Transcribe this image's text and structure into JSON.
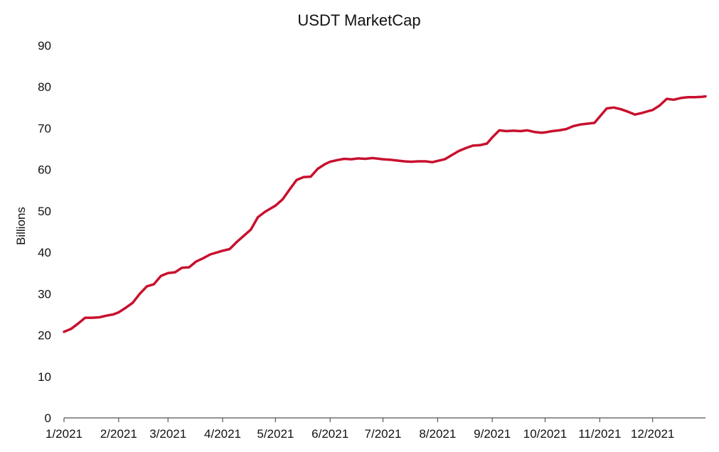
{
  "chart_data": {
    "type": "line",
    "title": "USDT MarketCap",
    "xlabel": "",
    "ylabel": "Billions",
    "ylim": [
      0,
      90
    ],
    "yticks": [
      0,
      10,
      20,
      30,
      40,
      50,
      60,
      70,
      80,
      90
    ],
    "xlim": [
      "2021-01-01",
      "2021-12-31"
    ],
    "xticks": [
      {
        "label": "1/2021",
        "date": "2021-01-01"
      },
      {
        "label": "2/2021",
        "date": "2021-02-01"
      },
      {
        "label": "3/2021",
        "date": "2021-03-01"
      },
      {
        "label": "4/2021",
        "date": "2021-04-01"
      },
      {
        "label": "5/2021",
        "date": "2021-05-01"
      },
      {
        "label": "6/2021",
        "date": "2021-06-01"
      },
      {
        "label": "7/2021",
        "date": "2021-07-01"
      },
      {
        "label": "8/2021",
        "date": "2021-08-01"
      },
      {
        "label": "9/2021",
        "date": "2021-09-01"
      },
      {
        "label": "10/2021",
        "date": "2021-10-01"
      },
      {
        "label": "11/2021",
        "date": "2021-11-01"
      },
      {
        "label": "12/2021",
        "date": "2021-12-01"
      }
    ],
    "grid": false,
    "legend": "none",
    "colors": {
      "line": "#c8102e",
      "axis": "#555555",
      "text": "#111111"
    },
    "series": [
      {
        "x": [
          "2021-01-01",
          "2021-01-05",
          "2021-01-09",
          "2021-01-13",
          "2021-01-17",
          "2021-01-21",
          "2021-01-25",
          "2021-01-29",
          "2021-02-01",
          "2021-02-05",
          "2021-02-09",
          "2021-02-13",
          "2021-02-17",
          "2021-02-21",
          "2021-02-25",
          "2021-03-01",
          "2021-03-05",
          "2021-03-09",
          "2021-03-13",
          "2021-03-17",
          "2021-03-21",
          "2021-03-25",
          "2021-03-29",
          "2021-04-01",
          "2021-04-05",
          "2021-04-09",
          "2021-04-13",
          "2021-04-17",
          "2021-04-21",
          "2021-04-25",
          "2021-04-29",
          "2021-05-01",
          "2021-05-05",
          "2021-05-09",
          "2021-05-13",
          "2021-05-17",
          "2021-05-21",
          "2021-05-25",
          "2021-05-29",
          "2021-06-01",
          "2021-06-05",
          "2021-06-09",
          "2021-06-13",
          "2021-06-17",
          "2021-06-21",
          "2021-06-25",
          "2021-06-29",
          "2021-07-01",
          "2021-07-05",
          "2021-07-09",
          "2021-07-13",
          "2021-07-17",
          "2021-07-21",
          "2021-07-25",
          "2021-07-29",
          "2021-08-01",
          "2021-08-05",
          "2021-08-09",
          "2021-08-13",
          "2021-08-17",
          "2021-08-21",
          "2021-08-25",
          "2021-08-29",
          "2021-09-01",
          "2021-09-05",
          "2021-09-09",
          "2021-09-13",
          "2021-09-17",
          "2021-09-21",
          "2021-09-25",
          "2021-09-29",
          "2021-10-01",
          "2021-10-05",
          "2021-10-09",
          "2021-10-13",
          "2021-10-17",
          "2021-10-21",
          "2021-10-25",
          "2021-10-29",
          "2021-11-01",
          "2021-11-05",
          "2021-11-09",
          "2021-11-13",
          "2021-11-17",
          "2021-11-21",
          "2021-11-25",
          "2021-11-29",
          "2021-12-01",
          "2021-12-05",
          "2021-12-09",
          "2021-12-13",
          "2021-12-17",
          "2021-12-21",
          "2021-12-25",
          "2021-12-29",
          "2021-12-31"
        ],
        "y": [
          20.8,
          21.5,
          22.8,
          24.2,
          24.2,
          24.3,
          24.7,
          25.0,
          25.5,
          26.6,
          27.8,
          30.0,
          31.8,
          32.3,
          34.3,
          35.0,
          35.2,
          36.3,
          36.4,
          37.8,
          38.6,
          39.5,
          40.0,
          40.4,
          40.8,
          42.5,
          44.0,
          45.5,
          48.5,
          49.8,
          50.8,
          51.3,
          52.8,
          55.2,
          57.5,
          58.2,
          58.3,
          60.2,
          61.3,
          61.9,
          62.3,
          62.6,
          62.5,
          62.7,
          62.6,
          62.8,
          62.6,
          62.5,
          62.4,
          62.2,
          62.0,
          61.9,
          62.0,
          62.0,
          61.8,
          62.1,
          62.5,
          63.5,
          64.5,
          65.2,
          65.8,
          65.9,
          66.3,
          67.8,
          69.5,
          69.3,
          69.4,
          69.3,
          69.5,
          69.1,
          68.9,
          69.0,
          69.3,
          69.5,
          69.8,
          70.5,
          70.9,
          71.1,
          71.3,
          72.8,
          74.8,
          75.0,
          74.6,
          74.0,
          73.3,
          73.7,
          74.2,
          74.4,
          75.5,
          77.1,
          76.9,
          77.3,
          77.5,
          77.5,
          77.6,
          77.7
        ]
      }
    ]
  }
}
